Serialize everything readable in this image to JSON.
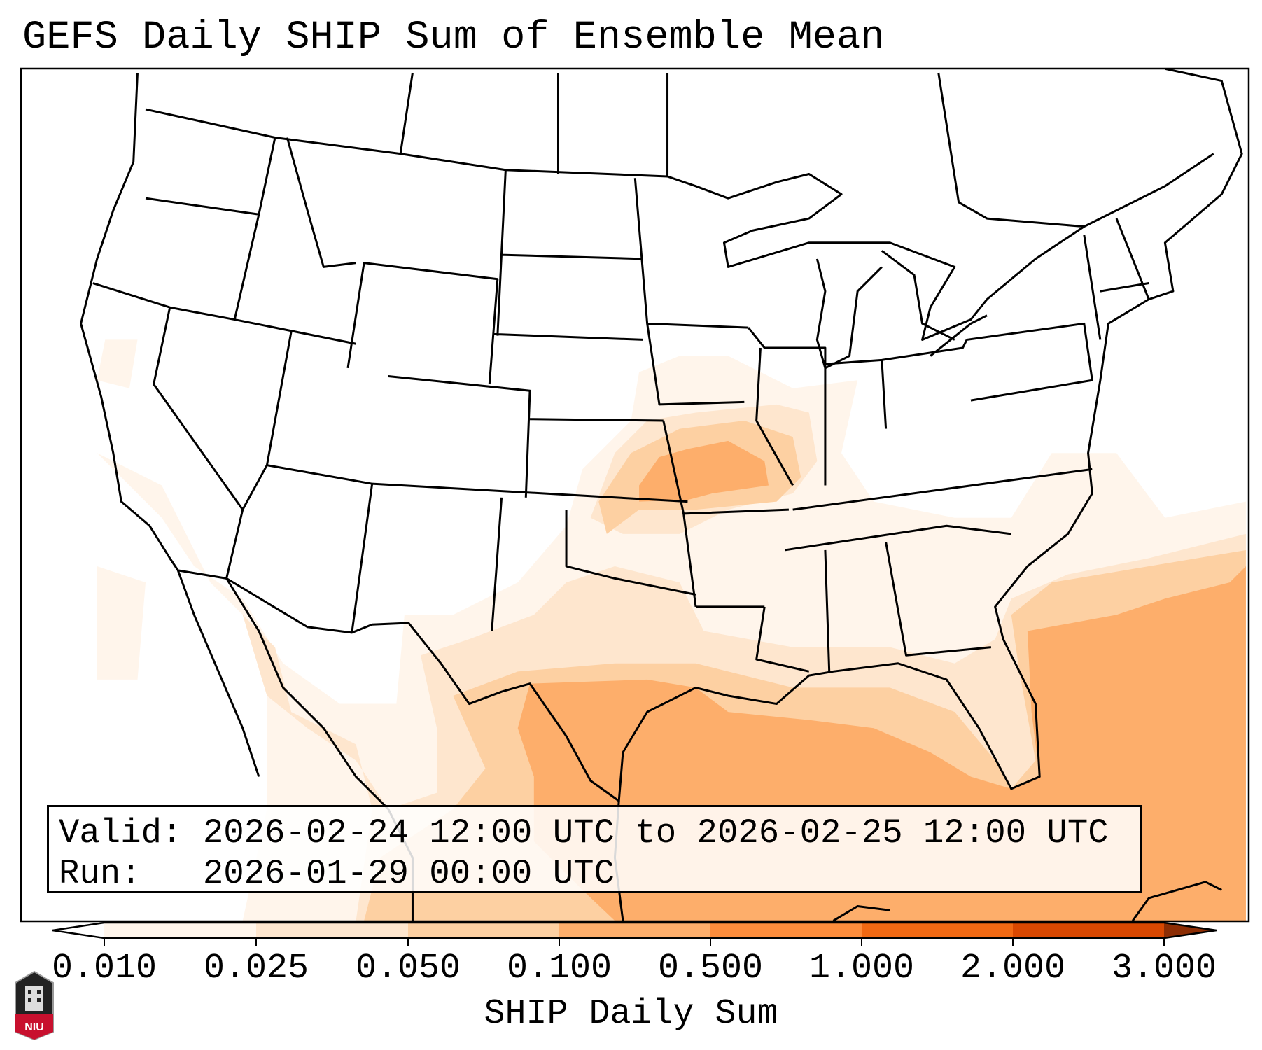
{
  "title": "GEFS Daily SHIP Sum of Ensemble Mean",
  "info_box": {
    "valid_line": "Valid: 2026-02-24 12:00 UTC to 2026-02-25 12:00 UTC",
    "run_line": "Run:   2026-01-29 00:00 UTC"
  },
  "colorbar": {
    "label": "SHIP Daily Sum",
    "ticks": [
      "0.010",
      "0.025",
      "0.050",
      "0.100",
      "0.500",
      "1.000",
      "2.000",
      "3.000"
    ],
    "colors": [
      "#fff5eb",
      "#fee6ce",
      "#fdd0a2",
      "#fdae6b",
      "#fd8d3c",
      "#f16913",
      "#d94801"
    ],
    "under_color": "#ffffff",
    "over_color": "#8c2d04"
  },
  "logo": {
    "text": "NIU"
  }
}
